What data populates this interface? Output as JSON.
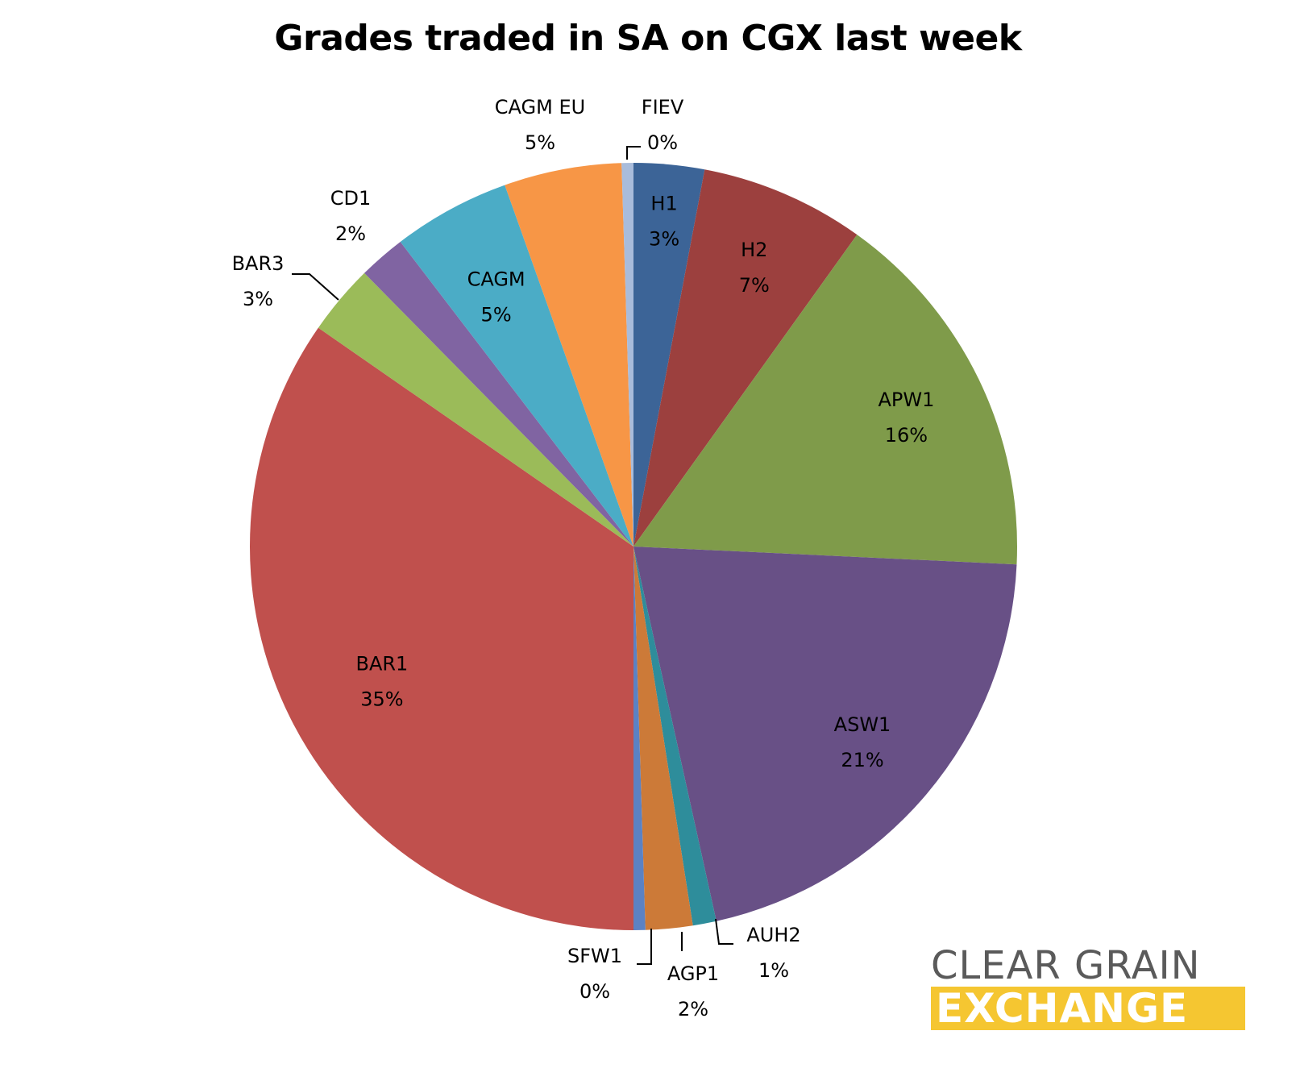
{
  "chart_data": {
    "type": "pie",
    "title": "Grades traded in SA on CGX last week",
    "slices": [
      {
        "name": "H1",
        "value": 3,
        "pct_label": "3%",
        "color": "#3c6497"
      },
      {
        "name": "H2",
        "value": 7,
        "pct_label": "7%",
        "color": "#9c403e"
      },
      {
        "name": "APW1",
        "value": 16,
        "pct_label": "16%",
        "color": "#7f9b4a"
      },
      {
        "name": "ASW1",
        "value": 21,
        "pct_label": "21%",
        "color": "#685086"
      },
      {
        "name": "AUH2",
        "value": 1,
        "pct_label": "1%",
        "color": "#2e8d9b"
      },
      {
        "name": "AGP1",
        "value": 2,
        "pct_label": "2%",
        "color": "#cc7a38"
      },
      {
        "name": "SFW1",
        "value": 0.5,
        "pct_label": "0%",
        "color": "#5b82c4"
      },
      {
        "name": "BAR1",
        "value": 35,
        "pct_label": "35%",
        "color": "#c0504d"
      },
      {
        "name": "BAR3",
        "value": 3,
        "pct_label": "3%",
        "color": "#9bbb59"
      },
      {
        "name": "CD1",
        "value": 2,
        "pct_label": "2%",
        "color": "#8064a2"
      },
      {
        "name": "CAGM",
        "value": 5,
        "pct_label": "5%",
        "color": "#4bacc6"
      },
      {
        "name": "CAGM EU",
        "value": 5,
        "pct_label": "5%",
        "color": "#f79646"
      },
      {
        "name": "FIEV",
        "value": 0.5,
        "pct_label": "0%",
        "color": "#a9bcdb"
      }
    ]
  },
  "logo": {
    "line1": "CLEAR GRAIN",
    "line2": "EXCHANGE",
    "gray": "#5a5a5a",
    "yellow": "#f5c631"
  }
}
